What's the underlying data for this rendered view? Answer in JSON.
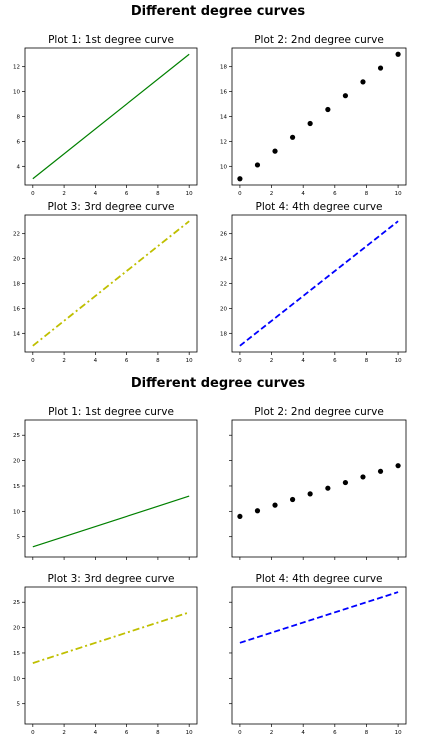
{
  "figures": [
    {
      "suptitle": "Different degree curves",
      "sharey": false
    },
    {
      "suptitle": "Different degree curves",
      "sharey": true,
      "shared_ylim": [
        1,
        28
      ],
      "shared_yticks": [
        5,
        10,
        15,
        20,
        25
      ]
    }
  ],
  "chart_data": [
    {
      "figure": 1,
      "type": "line",
      "title": "Plot 1: 1st degree curve",
      "style": "solid",
      "color": "#008000",
      "x": [
        0,
        10
      ],
      "y": [
        3,
        13
      ],
      "xlim": [
        -0.5,
        10.5
      ],
      "ylim": [
        2.5,
        13.5
      ],
      "xticks": [
        0,
        2,
        4,
        6,
        8,
        10
      ],
      "yticks": [
        4,
        6,
        8,
        10,
        12
      ]
    },
    {
      "figure": 1,
      "type": "scatter",
      "title": "Plot 2: 2nd degree curve",
      "style": "dots",
      "color": "#000000",
      "x": [
        0,
        1.11,
        2.22,
        3.33,
        4.44,
        5.56,
        6.67,
        7.78,
        8.89,
        10
      ],
      "y": [
        9,
        10.11,
        11.22,
        12.33,
        13.44,
        14.56,
        15.67,
        16.78,
        17.89,
        19
      ],
      "xlim": [
        -0.5,
        10.5
      ],
      "ylim": [
        8.5,
        19.5
      ],
      "xticks": [
        0,
        2,
        4,
        6,
        8,
        10
      ],
      "yticks": [
        10,
        12,
        14,
        16,
        18
      ]
    },
    {
      "figure": 1,
      "type": "line",
      "title": "Plot 3: 3rd degree curve",
      "style": "dashdot",
      "color": "#bfbf00",
      "x": [
        0,
        10
      ],
      "y": [
        13,
        23
      ],
      "xlim": [
        -0.5,
        10.5
      ],
      "ylim": [
        12.5,
        23.5
      ],
      "xticks": [
        0,
        2,
        4,
        6,
        8,
        10
      ],
      "yticks": [
        14,
        16,
        18,
        20,
        22
      ]
    },
    {
      "figure": 1,
      "type": "line",
      "title": "Plot 4: 4th degree curve",
      "style": "dashed",
      "color": "#0000ff",
      "x": [
        0,
        10
      ],
      "y": [
        17,
        27
      ],
      "xlim": [
        -0.5,
        10.5
      ],
      "ylim": [
        16.5,
        27.5
      ],
      "xticks": [
        0,
        2,
        4,
        6,
        8,
        10
      ],
      "yticks": [
        18,
        20,
        22,
        24,
        26
      ]
    },
    {
      "figure": 2,
      "type": "line",
      "title": "Plot 1: 1st degree curve",
      "style": "solid",
      "color": "#008000",
      "x": [
        0,
        10
      ],
      "y": [
        3,
        13
      ],
      "xlim": [
        -0.5,
        10.5
      ],
      "ylim": [
        1,
        28
      ],
      "xticks": [],
      "yticks": [
        5,
        10,
        15,
        20,
        25
      ]
    },
    {
      "figure": 2,
      "type": "scatter",
      "title": "Plot 2: 2nd degree curve",
      "style": "dots",
      "color": "#000000",
      "x": [
        0,
        1.11,
        2.22,
        3.33,
        4.44,
        5.56,
        6.67,
        7.78,
        8.89,
        10
      ],
      "y": [
        9,
        10.11,
        11.22,
        12.33,
        13.44,
        14.56,
        15.67,
        16.78,
        17.89,
        19
      ],
      "xlim": [
        -0.5,
        10.5
      ],
      "ylim": [
        1,
        28
      ],
      "xticks": [],
      "yticks": []
    },
    {
      "figure": 2,
      "type": "line",
      "title": "Plot 3: 3rd degree curve",
      "style": "dashdot",
      "color": "#bfbf00",
      "x": [
        0,
        10
      ],
      "y": [
        13,
        23
      ],
      "xlim": [
        -0.5,
        10.5
      ],
      "ylim": [
        1,
        28
      ],
      "xticks": [
        0,
        2,
        4,
        6,
        8,
        10
      ],
      "yticks": [
        5,
        10,
        15,
        20,
        25
      ]
    },
    {
      "figure": 2,
      "type": "line",
      "title": "Plot 4: 4th degree curve",
      "style": "dashed",
      "color": "#0000ff",
      "x": [
        0,
        10
      ],
      "y": [
        17,
        27
      ],
      "xlim": [
        -0.5,
        10.5
      ],
      "ylim": [
        1,
        28
      ],
      "xticks": [
        0,
        2,
        4,
        6,
        8,
        10
      ],
      "yticks": []
    }
  ]
}
